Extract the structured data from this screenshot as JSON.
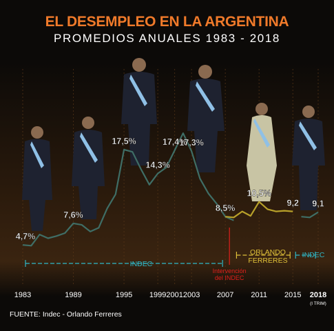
{
  "title": "EL DESEMPLEO EN LA ARGENTINA",
  "subtitle": "PROMEDIOS ANUALES 1983 - 2018",
  "source": "FUENTE: Indec - Orlando Ferreres",
  "colors": {
    "background": "#0c0a08",
    "title": "#f07a2a",
    "indec_line": "#3f6e66",
    "ferreres_line": "#b8a12a",
    "indec_label": "#2fb8c8",
    "ferreres_label": "#e0c23a",
    "intervention_label": "#e0201c",
    "grid": "#5a3818"
  },
  "chart_data": {
    "type": "line",
    "title": "EL DESEMPLEO EN LA ARGENTINA",
    "subtitle": "PROMEDIOS ANUALES 1983 - 2018",
    "xlabel": "",
    "ylabel": "",
    "xlim": [
      1983,
      2018
    ],
    "ylim": [
      0,
      20
    ],
    "x_ticks": [
      1983,
      1989,
      1995,
      1999,
      2001,
      2003,
      2007,
      2011,
      2015,
      2018
    ],
    "x_tick_labels": [
      "1983",
      "1989",
      "1995",
      "1999",
      "2001",
      "2003",
      "2007",
      "2011",
      "2015",
      "2018"
    ],
    "x_tick_sublabel": "(I TRIM)",
    "grid": "vertical lines at tick years",
    "series": [
      {
        "name": "INDEC",
        "x": [
          1983,
          1984,
          1985,
          1986,
          1987,
          1988,
          1989,
          1990,
          1991,
          1992,
          1993,
          1994,
          1995,
          1996,
          1997,
          1998,
          1999,
          2000,
          2001,
          2002,
          2003,
          2004,
          2005,
          2006,
          2007,
          2008
        ],
        "values": [
          4.7,
          4.6,
          6.1,
          5.6,
          5.9,
          6.3,
          7.6,
          7.4,
          6.5,
          7.0,
          9.6,
          11.5,
          17.5,
          17.2,
          14.9,
          12.8,
          14.3,
          15.1,
          17.4,
          19.7,
          17.3,
          13.6,
          11.6,
          10.2,
          8.5,
          8.0
        ]
      },
      {
        "name": "ORLANDO FERRERES",
        "x": [
          2007,
          2008,
          2009,
          2010,
          2011,
          2012,
          2013,
          2014,
          2015
        ],
        "values": [
          8.5,
          8.4,
          9.2,
          8.6,
          10.5,
          9.5,
          9.2,
          9.3,
          9.2
        ]
      },
      {
        "name": "INDEC",
        "x": [
          2016,
          2017,
          2018
        ],
        "values": [
          8.5,
          8.4,
          9.1
        ]
      }
    ],
    "data_labels": [
      {
        "x": 1983,
        "y": 4.7,
        "text": "4,7%"
      },
      {
        "x": 1989,
        "y": 7.6,
        "text": "7,6%"
      },
      {
        "x": 1995,
        "y": 17.5,
        "text": "17,5%"
      },
      {
        "x": 1999,
        "y": 14.3,
        "text": "14,3%"
      },
      {
        "x": 2001,
        "y": 17.4,
        "text": "17,4%"
      },
      {
        "x": 2003,
        "y": 17.3,
        "text": "17,3%"
      },
      {
        "x": 2007,
        "y": 8.5,
        "text": "8,5%"
      },
      {
        "x": 2011,
        "y": 10.5,
        "text": "10,5%"
      },
      {
        "x": 2015,
        "y": 9.2,
        "text": "9,2"
      },
      {
        "x": 2018,
        "y": 9.1,
        "text": "9,1"
      }
    ],
    "annotations": [
      {
        "text": "INDEC",
        "range": [
          1983,
          2007
        ]
      },
      {
        "text": "ORLANDO FERRERES",
        "range": [
          2008,
          2015
        ]
      },
      {
        "text": "INDEC",
        "range": [
          2015,
          2018
        ]
      },
      {
        "text": "Intervención del INDEC",
        "x": 2007
      }
    ]
  }
}
